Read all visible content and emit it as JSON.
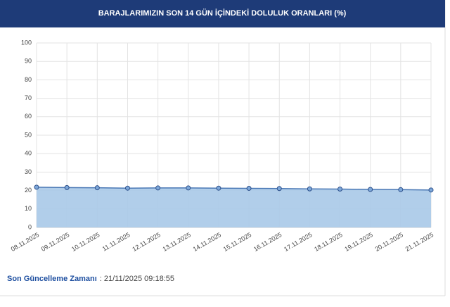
{
  "chart_data": {
    "type": "area",
    "title": "BARAJLARIMIZIN SON 14 GÜN İÇİNDEKİ DOLULUK ORANLARI (%)",
    "categories": [
      "08.11.2025",
      "09.11.2025",
      "10.11.2025",
      "11.11.2025",
      "12.11.2025",
      "13.11.2025",
      "14.11.2025",
      "15.11.2025",
      "16.11.2025",
      "17.11.2025",
      "18.11.2025",
      "19.11.2025",
      "20.11.2025",
      "21.11.2025"
    ],
    "values": [
      21.8,
      21.6,
      21.5,
      21.3,
      21.4,
      21.4,
      21.3,
      21.2,
      21.1,
      20.9,
      20.8,
      20.6,
      20.5,
      20.3
    ],
    "color": "#a9c9e8",
    "line_color": "#4a78b5",
    "ylim": [
      0,
      100
    ],
    "yticks": [
      0,
      10,
      20,
      30,
      40,
      50,
      60,
      70,
      80,
      90,
      100
    ],
    "grid": true
  },
  "footer": {
    "label": "Son Güncelleme Zamanı",
    "value": ": 21/11/2025 09:18:55"
  }
}
